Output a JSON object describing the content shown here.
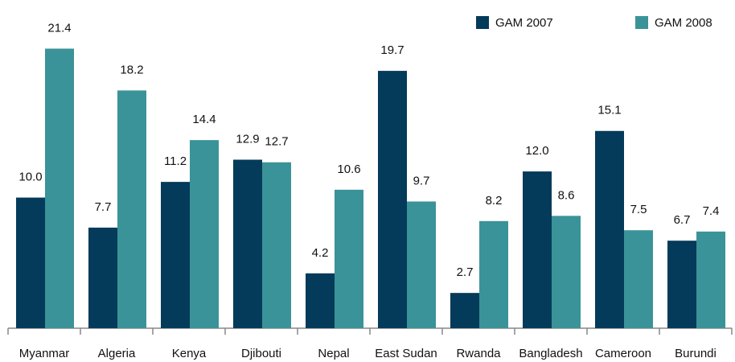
{
  "chart_data": {
    "type": "bar",
    "categories": [
      "Myanmar",
      "Algeria",
      "Kenya",
      "Djibouti",
      "Nepal",
      "East Sudan",
      "Rwanda",
      "Bangladesh",
      "Cameroon",
      "Burundi"
    ],
    "series": [
      {
        "name": "GAM 2007",
        "color": "#043a5a",
        "values": [
          10.0,
          7.7,
          11.2,
          12.9,
          4.2,
          19.7,
          2.7,
          12.0,
          15.1,
          6.7
        ],
        "value_labels": [
          "10.0",
          "7.7",
          "11.2",
          "12.9",
          "4.2",
          "19.7",
          "2.7",
          "12.0",
          "15.1",
          "6.7"
        ]
      },
      {
        "name": "GAM 2008",
        "color": "#3a9398",
        "values": [
          21.4,
          18.2,
          14.4,
          12.7,
          10.6,
          9.7,
          8.2,
          8.6,
          7.5,
          7.4
        ],
        "value_labels": [
          "21.4",
          "18.2",
          "14.4",
          "12.7",
          "10.6",
          "9.7",
          "8.2",
          "8.6",
          "7.5",
          "7.4"
        ]
      }
    ],
    "ylim": [
      0,
      25
    ],
    "legend": "top-right"
  }
}
